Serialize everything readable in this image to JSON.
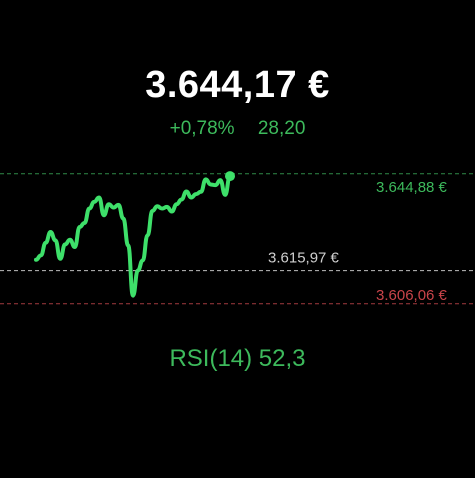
{
  "widget": {
    "price": "3.644,17 €",
    "change_percent": "+0,78%",
    "change_absolute": "28,20",
    "rsi_label": "RSI(14) 52,3"
  },
  "levels": {
    "high": {
      "label": "3.644,88 €",
      "value": 3644.88
    },
    "reference": {
      "label": "3.615,97 €",
      "value": 3615.97
    },
    "low": {
      "label": "3.606,06 €",
      "value": 3606.06
    }
  },
  "colors": {
    "positive": "#3dba5c",
    "line": "#3ee06a",
    "negative": "#c9444a",
    "reference": "#cfcfcf",
    "text": "#ffffff"
  },
  "chart_data": {
    "type": "line",
    "series": [
      {
        "values": [
          3619.2,
          3620.5,
          3624.3,
          3627.5,
          3625.0,
          3619.5,
          3623.8,
          3625.2,
          3623.0,
          3629.0,
          3630.2,
          3634.5,
          3636.5,
          3637.8,
          3632.5,
          3635.8,
          3634.8,
          3635.6,
          3631.5,
          3623.5,
          3608.5,
          3616.0,
          3619.0,
          3626.5,
          3633.8,
          3635.2,
          3634.5,
          3635.0,
          3633.6,
          3635.8,
          3637.2,
          3639.6,
          3637.8,
          3638.8,
          3639.5,
          3643.2,
          3641.7,
          3641.5,
          3643.0,
          3638.6,
          3644.2
        ]
      }
    ],
    "ylim": [
      3604.2,
      3649.0
    ]
  }
}
